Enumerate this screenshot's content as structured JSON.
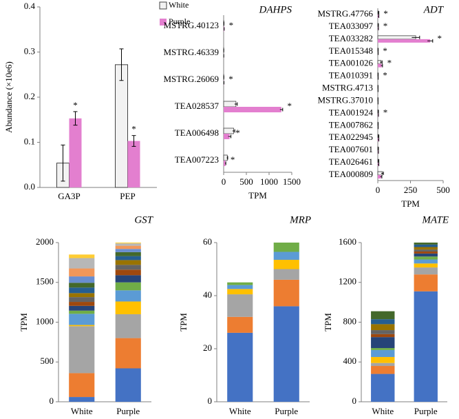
{
  "chart_data": [
    {
      "type": "bar",
      "ylabel": "Abundance (×10e6)",
      "categories": [
        "GA3P",
        "PEP"
      ],
      "series": [
        {
          "name": "White",
          "color": "#f2f2f2",
          "edgecolor": "#404040",
          "values": [
            0.054,
            0.272
          ],
          "errors": [
            0.04,
            0.035
          ]
        },
        {
          "name": "Purple",
          "color": "#e37fcf",
          "values": [
            0.153,
            0.103
          ],
          "errors": [
            0.015,
            0.012
          ],
          "annotations": [
            "*",
            "*"
          ]
        }
      ],
      "ylim": [
        0,
        0.4
      ],
      "yticks": [
        {
          "value": 0,
          "label": "0.0"
        },
        0.1,
        0.2,
        0.3,
        0.4
      ],
      "legend": "top-right"
    },
    {
      "type": "hbar",
      "title": "DAHPS",
      "xlabel": "TPM",
      "categories": [
        "MSTRG.40123",
        "MSTRG.46339",
        "MSTRG.26069",
        "TEA028537",
        "TEA006498",
        "TEA007223"
      ],
      "series": [
        {
          "name": "White",
          "color": "#f2f2f2",
          "edgecolor": "#404040",
          "values": [
            5,
            2,
            3,
            270,
            220,
            80
          ],
          "errors": [
            2,
            1,
            1,
            30,
            25,
            10
          ]
        },
        {
          "name": "Purple",
          "color": "#e37fcf",
          "values": [
            10,
            2,
            5,
            1270,
            130,
            40
          ],
          "errors": [
            3,
            1,
            2,
            30,
            30,
            8
          ],
          "annotations": [
            "*",
            null,
            "*",
            "*",
            "*",
            "*"
          ]
        }
      ],
      "xlim": [
        0,
        1500
      ],
      "xticks": [
        0,
        500,
        1000,
        1500
      ]
    },
    {
      "type": "hbar",
      "title": "ADT",
      "xlabel": "TPM",
      "categories": [
        "MSTRG.47766",
        "TEA033097",
        "TEA033282",
        "TEA015348",
        "TEA001026",
        "TEA010391",
        "MSTRG.4713",
        "MSTRG.37010",
        "TEA001924",
        "TEA007862",
        "TEA022945",
        "TEA007601",
        "TEA026461",
        "TEA000809"
      ],
      "series": [
        {
          "name": "White",
          "color": "#f2f2f2",
          "edgecolor": "#404040",
          "values": [
            5,
            3,
            290,
            2,
            25,
            2,
            1,
            1,
            3,
            2,
            5,
            3,
            5,
            35
          ],
          "errors": [
            3,
            2,
            30,
            1,
            8,
            1,
            1,
            1,
            2,
            1,
            3,
            2,
            3,
            8
          ]
        },
        {
          "name": "Purple",
          "color": "#e37fcf",
          "values": [
            5,
            3,
            400,
            2,
            30,
            2,
            1,
            1,
            3,
            2,
            5,
            3,
            5,
            25
          ],
          "errors": [
            3,
            2,
            20,
            1,
            6,
            1,
            1,
            1,
            2,
            1,
            3,
            2,
            3,
            6
          ],
          "annotations": [
            "*",
            "*",
            "*",
            "*",
            "*",
            "*",
            null,
            null,
            "*",
            null,
            null,
            null,
            null,
            null
          ]
        }
      ],
      "xlim": [
        0,
        500
      ],
      "xticks": [
        0,
        250,
        500
      ]
    },
    {
      "type": "stacked",
      "title": "GST",
      "ylabel": "TPM",
      "categories": [
        "White",
        "Purple"
      ],
      "series": [
        {
          "color": "#4472c4",
          "values": [
            60,
            420
          ]
        },
        {
          "color": "#ed7d31",
          "values": [
            300,
            380
          ]
        },
        {
          "color": "#a5a5a5",
          "values": [
            590,
            300
          ]
        },
        {
          "color": "#ffc000",
          "values": [
            15,
            160
          ]
        },
        {
          "color": "#5b9bd5",
          "values": [
            140,
            140
          ]
        },
        {
          "color": "#70ad47",
          "values": [
            40,
            100
          ]
        },
        {
          "color": "#264478",
          "values": [
            60,
            90
          ]
        },
        {
          "color": "#9e480e",
          "values": [
            50,
            70
          ]
        },
        {
          "color": "#636363",
          "values": [
            60,
            60
          ]
        },
        {
          "color": "#997300",
          "values": [
            50,
            60
          ]
        },
        {
          "color": "#255e91",
          "values": [
            70,
            50
          ]
        },
        {
          "color": "#43682b",
          "values": [
            60,
            50
          ]
        },
        {
          "color": "#698ed0",
          "values": [
            80,
            40
          ]
        },
        {
          "color": "#f1975a",
          "values": [
            100,
            40
          ]
        },
        {
          "color": "#b7b7b7",
          "values": [
            130,
            30
          ]
        },
        {
          "color": "#ffcd33",
          "values": [
            45,
            10
          ]
        }
      ],
      "ylim": [
        0,
        2000
      ],
      "yticks": [
        0,
        500,
        1000,
        1500,
        2000
      ]
    },
    {
      "type": "stacked",
      "title": "MRP",
      "ylabel": "TPM",
      "categories": [
        "White",
        "Purple"
      ],
      "series": [
        {
          "color": "#4472c4",
          "values": [
            26,
            36
          ]
        },
        {
          "color": "#ed7d31",
          "values": [
            6,
            10
          ]
        },
        {
          "color": "#a5a5a5",
          "values": [
            8.5,
            4
          ]
        },
        {
          "color": "#ffc000",
          "values": [
            2,
            3.5
          ]
        },
        {
          "color": "#5b9bd5",
          "values": [
            1.5,
            3
          ]
        },
        {
          "color": "#70ad47",
          "values": [
            1,
            3.5
          ]
        }
      ],
      "ylim": [
        0,
        60
      ],
      "yticks": [
        0,
        20,
        40,
        60
      ]
    },
    {
      "type": "stacked",
      "title": "MATE",
      "ylabel": "TPM",
      "categories": [
        "White",
        "Purple"
      ],
      "series": [
        {
          "color": "#4472c4",
          "values": [
            280,
            1110
          ]
        },
        {
          "color": "#ed7d31",
          "values": [
            80,
            170
          ]
        },
        {
          "color": "#a5a5a5",
          "values": [
            30,
            70
          ]
        },
        {
          "color": "#ffc000",
          "values": [
            60,
            40
          ]
        },
        {
          "color": "#5b9bd5",
          "values": [
            70,
            40
          ]
        },
        {
          "color": "#70ad47",
          "values": [
            20,
            30
          ]
        },
        {
          "color": "#264478",
          "values": [
            110,
            30
          ]
        },
        {
          "color": "#9e480e",
          "values": [
            30,
            20
          ]
        },
        {
          "color": "#636363",
          "values": [
            40,
            20
          ]
        },
        {
          "color": "#997300",
          "values": [
            60,
            25
          ]
        },
        {
          "color": "#255e91",
          "values": [
            50,
            25
          ]
        },
        {
          "color": "#43682b",
          "values": [
            80,
            20
          ]
        }
      ],
      "ylim": [
        0,
        1600
      ],
      "yticks": [
        0,
        400,
        800,
        1200,
        1600
      ]
    }
  ]
}
